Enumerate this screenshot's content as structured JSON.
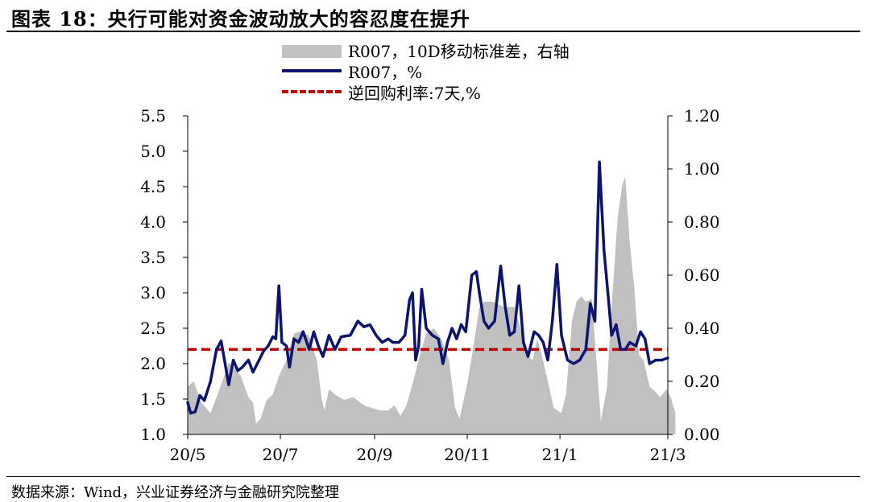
{
  "title": "图表 18：央行可能对资金波动放大的容忍度在提升",
  "source": "数据来源：Wind，兴业证券经济与金融研究院整理",
  "colors": {
    "area": "#c0c0c0",
    "line": "#0d1470",
    "reference": "#c00000"
  },
  "chart_data": {
    "type": "line",
    "legend_placement": "top-center",
    "grid": false,
    "x_tick_labels": [
      "20/5",
      "20/7",
      "20/9",
      "20/11",
      "21/1",
      "21/3"
    ],
    "y_left": {
      "ticks": [
        "1.0",
        "1.5",
        "2.0",
        "2.5",
        "3.0",
        "3.5",
        "4.0",
        "4.5",
        "5.0",
        "5.5"
      ],
      "range": [
        1.0,
        5.5
      ]
    },
    "y_right": {
      "ticks": [
        "0.00",
        "0.20",
        "0.40",
        "0.60",
        "0.80",
        "1.00",
        "1.20"
      ],
      "range": [
        0.0,
        1.2
      ]
    },
    "series": [
      {
        "name": "R007，10D移动标准差，右轴",
        "kind": "area",
        "axis": "right",
        "points": [
          [
            "2020-05-01",
            0.18
          ],
          [
            "2020-05-05",
            0.2
          ],
          [
            "2020-05-10",
            0.12
          ],
          [
            "2020-05-13",
            0.1
          ],
          [
            "2020-05-16",
            0.08
          ],
          [
            "2020-05-20",
            0.14
          ],
          [
            "2020-05-25",
            0.22
          ],
          [
            "2020-05-28",
            0.27
          ],
          [
            "2020-06-01",
            0.25
          ],
          [
            "2020-06-05",
            0.22
          ],
          [
            "2020-06-10",
            0.14
          ],
          [
            "2020-06-13",
            0.12
          ],
          [
            "2020-06-15",
            0.04
          ],
          [
            "2020-06-18",
            0.06
          ],
          [
            "2020-06-22",
            0.13
          ],
          [
            "2020-06-26",
            0.15
          ],
          [
            "2020-06-30",
            0.22
          ],
          [
            "2020-07-05",
            0.28
          ],
          [
            "2020-07-10",
            0.38
          ],
          [
            "2020-07-15",
            0.39
          ],
          [
            "2020-07-20",
            0.37
          ],
          [
            "2020-07-25",
            0.28
          ],
          [
            "2020-07-28",
            0.14
          ],
          [
            "2020-07-30",
            0.09
          ],
          [
            "2020-08-02",
            0.17
          ],
          [
            "2020-08-06",
            0.15
          ],
          [
            "2020-08-12",
            0.13
          ],
          [
            "2020-08-18",
            0.14
          ],
          [
            "2020-08-25",
            0.11
          ],
          [
            "2020-08-30",
            0.1
          ],
          [
            "2020-09-05",
            0.09
          ],
          [
            "2020-09-10",
            0.09
          ],
          [
            "2020-09-14",
            0.11
          ],
          [
            "2020-09-18",
            0.07
          ],
          [
            "2020-09-22",
            0.11
          ],
          [
            "2020-09-26",
            0.19
          ],
          [
            "2020-09-30",
            0.28
          ],
          [
            "2020-10-05",
            0.38
          ],
          [
            "2020-10-10",
            0.4
          ],
          [
            "2020-10-15",
            0.36
          ],
          [
            "2020-10-20",
            0.28
          ],
          [
            "2020-10-24",
            0.1
          ],
          [
            "2020-10-27",
            0.06
          ],
          [
            "2020-11-01",
            0.19
          ],
          [
            "2020-11-05",
            0.33
          ],
          [
            "2020-11-09",
            0.48
          ],
          [
            "2020-11-12",
            0.5
          ],
          [
            "2020-11-18",
            0.5
          ],
          [
            "2020-11-25",
            0.48
          ],
          [
            "2020-12-02",
            0.48
          ],
          [
            "2020-12-06",
            0.4
          ],
          [
            "2020-12-10",
            0.3
          ],
          [
            "2020-12-14",
            0.28
          ],
          [
            "2020-12-17",
            0.36
          ],
          [
            "2020-12-20",
            0.3
          ],
          [
            "2020-12-24",
            0.2
          ],
          [
            "2020-12-28",
            0.1
          ],
          [
            "2021-01-02",
            0.08
          ],
          [
            "2021-01-05",
            0.15
          ],
          [
            "2021-01-09",
            0.43
          ],
          [
            "2021-01-12",
            0.5
          ],
          [
            "2021-01-15",
            0.52
          ],
          [
            "2021-01-18",
            0.5
          ],
          [
            "2021-01-22",
            0.51
          ],
          [
            "2021-01-25",
            0.28
          ],
          [
            "2021-01-28",
            0.05
          ],
          [
            "2021-02-01",
            0.18
          ],
          [
            "2021-02-04",
            0.48
          ],
          [
            "2021-02-08",
            0.82
          ],
          [
            "2021-02-11",
            0.94
          ],
          [
            "2021-02-13",
            0.97
          ],
          [
            "2021-02-16",
            0.72
          ],
          [
            "2021-02-19",
            0.55
          ],
          [
            "2021-02-22",
            0.3
          ],
          [
            "2021-02-25",
            0.28
          ],
          [
            "2021-03-01",
            0.18
          ],
          [
            "2021-03-05",
            0.16
          ],
          [
            "2021-03-08",
            0.14
          ],
          [
            "2021-03-12",
            0.17
          ],
          [
            "2021-03-15",
            0.14
          ],
          [
            "2021-03-18",
            0.08
          ]
        ]
      },
      {
        "name": "R007，%",
        "kind": "line",
        "axis": "left",
        "points": [
          [
            "2020-05-01",
            1.45
          ],
          [
            "2020-05-03",
            1.3
          ],
          [
            "2020-05-06",
            1.32
          ],
          [
            "2020-05-09",
            1.55
          ],
          [
            "2020-05-12",
            1.48
          ],
          [
            "2020-05-16",
            1.75
          ],
          [
            "2020-05-20",
            2.2
          ],
          [
            "2020-05-23",
            2.32
          ],
          [
            "2020-05-26",
            1.95
          ],
          [
            "2020-05-28",
            1.7
          ],
          [
            "2020-05-31",
            2.05
          ],
          [
            "2020-06-03",
            1.9
          ],
          [
            "2020-06-06",
            1.95
          ],
          [
            "2020-06-10",
            2.05
          ],
          [
            "2020-06-13",
            1.88
          ],
          [
            "2020-06-17",
            2.05
          ],
          [
            "2020-06-20",
            2.18
          ],
          [
            "2020-06-23",
            2.25
          ],
          [
            "2020-06-26",
            2.38
          ],
          [
            "2020-06-28",
            2.35
          ],
          [
            "2020-06-30",
            3.1
          ],
          [
            "2020-07-02",
            2.3
          ],
          [
            "2020-07-05",
            2.25
          ],
          [
            "2020-07-07",
            1.95
          ],
          [
            "2020-07-10",
            2.35
          ],
          [
            "2020-07-13",
            2.3
          ],
          [
            "2020-07-16",
            2.45
          ],
          [
            "2020-07-20",
            2.2
          ],
          [
            "2020-07-23",
            2.45
          ],
          [
            "2020-07-26",
            2.25
          ],
          [
            "2020-07-29",
            2.1
          ],
          [
            "2020-08-02",
            2.4
          ],
          [
            "2020-08-06",
            2.2
          ],
          [
            "2020-08-10",
            2.38
          ],
          [
            "2020-08-16",
            2.4
          ],
          [
            "2020-08-21",
            2.6
          ],
          [
            "2020-08-25",
            2.52
          ],
          [
            "2020-08-29",
            2.55
          ],
          [
            "2020-09-02",
            2.4
          ],
          [
            "2020-09-06",
            2.3
          ],
          [
            "2020-09-10",
            2.35
          ],
          [
            "2020-09-13",
            2.3
          ],
          [
            "2020-09-17",
            2.3
          ],
          [
            "2020-09-21",
            2.4
          ],
          [
            "2020-09-24",
            2.9
          ],
          [
            "2020-09-26",
            3.0
          ],
          [
            "2020-09-28",
            2.05
          ],
          [
            "2020-09-30",
            2.25
          ],
          [
            "2020-10-02",
            3.05
          ],
          [
            "2020-10-05",
            2.5
          ],
          [
            "2020-10-09",
            2.4
          ],
          [
            "2020-10-13",
            2.35
          ],
          [
            "2020-10-16",
            2.0
          ],
          [
            "2020-10-19",
            2.3
          ],
          [
            "2020-10-22",
            2.5
          ],
          [
            "2020-10-25",
            2.35
          ],
          [
            "2020-10-28",
            2.55
          ],
          [
            "2020-10-31",
            2.45
          ],
          [
            "2020-11-04",
            3.25
          ],
          [
            "2020-11-07",
            3.3
          ],
          [
            "2020-11-09",
            3.0
          ],
          [
            "2020-11-12",
            2.6
          ],
          [
            "2020-11-15",
            2.5
          ],
          [
            "2020-11-19",
            2.6
          ],
          [
            "2020-11-23",
            3.38
          ],
          [
            "2020-11-26",
            2.8
          ],
          [
            "2020-11-29",
            2.4
          ],
          [
            "2020-12-02",
            2.45
          ],
          [
            "2020-12-05",
            3.1
          ],
          [
            "2020-12-08",
            2.3
          ],
          [
            "2020-12-11",
            2.1
          ],
          [
            "2020-12-15",
            2.45
          ],
          [
            "2020-12-18",
            2.4
          ],
          [
            "2020-12-21",
            2.3
          ],
          [
            "2020-12-24",
            2.05
          ],
          [
            "2020-12-27",
            2.6
          ],
          [
            "2020-12-30",
            3.4
          ],
          [
            "2021-01-02",
            2.4
          ],
          [
            "2021-01-06",
            2.05
          ],
          [
            "2021-01-10",
            2.0
          ],
          [
            "2021-01-14",
            2.05
          ],
          [
            "2021-01-18",
            2.2
          ],
          [
            "2021-01-21",
            2.85
          ],
          [
            "2021-01-24",
            2.6
          ],
          [
            "2021-01-27",
            4.85
          ],
          [
            "2021-01-30",
            3.6
          ],
          [
            "2021-02-02",
            2.9
          ],
          [
            "2021-02-04",
            2.4
          ],
          [
            "2021-02-07",
            2.55
          ],
          [
            "2021-02-10",
            2.2
          ],
          [
            "2021-02-13",
            2.2
          ],
          [
            "2021-02-16",
            2.3
          ],
          [
            "2021-02-20",
            2.25
          ],
          [
            "2021-02-23",
            2.45
          ],
          [
            "2021-02-26",
            2.35
          ],
          [
            "2021-03-01",
            2.0
          ],
          [
            "2021-03-05",
            2.05
          ],
          [
            "2021-03-09",
            2.05
          ],
          [
            "2021-03-13",
            2.08
          ]
        ]
      },
      {
        "name": "逆回购利率:7天,%",
        "kind": "reference-line",
        "axis": "left",
        "points": [
          [
            "2020-05-01",
            2.2
          ],
          [
            "2021-03-13",
            2.2
          ]
        ]
      }
    ]
  }
}
